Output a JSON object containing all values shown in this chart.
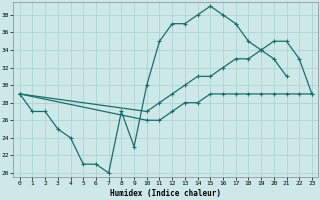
{
  "xlabel": "Humidex (Indice chaleur)",
  "xlim": [
    -0.5,
    23.5
  ],
  "ylim": [
    19.5,
    39.5
  ],
  "xticks": [
    0,
    1,
    2,
    3,
    4,
    5,
    6,
    7,
    8,
    9,
    10,
    11,
    12,
    13,
    14,
    15,
    16,
    17,
    18,
    19,
    20,
    21,
    22,
    23
  ],
  "yticks": [
    20,
    22,
    24,
    26,
    28,
    30,
    32,
    34,
    36,
    38
  ],
  "bg_color": "#cde8e8",
  "line_color": "#1a6e6a",
  "grid_color": "#b8d8d8",
  "s1_x": [
    0,
    1,
    2,
    3,
    4,
    5,
    6,
    7,
    8,
    9,
    10,
    11,
    12,
    13,
    14,
    15,
    16,
    17,
    18,
    19,
    20,
    21
  ],
  "s1_y": [
    29,
    27,
    27,
    25,
    24,
    21,
    21,
    20,
    27,
    23,
    30,
    35,
    37,
    37,
    38,
    39,
    38,
    37,
    35,
    34,
    33,
    31
  ],
  "s2_x": [
    0,
    10,
    11,
    12,
    13,
    14,
    15,
    16,
    17,
    18,
    19,
    20,
    21,
    22,
    23
  ],
  "s2_y": [
    29,
    27,
    28,
    29,
    30,
    31,
    31,
    32,
    33,
    33,
    34,
    35,
    35,
    33,
    29
  ],
  "s3_x": [
    0,
    10,
    11,
    12,
    13,
    14,
    15,
    16,
    17,
    18,
    19,
    20,
    21,
    22,
    23
  ],
  "s3_y": [
    29,
    26,
    26,
    27,
    28,
    28,
    29,
    29,
    29,
    29,
    29,
    29,
    29,
    29,
    29
  ]
}
